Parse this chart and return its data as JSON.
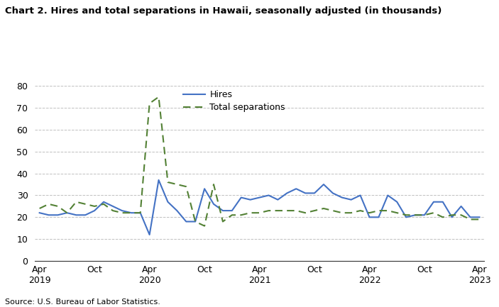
{
  "title": "Chart 2. Hires and total separations in Hawaii, seasonally adjusted (in thousands)",
  "source": "Source: U.S. Bureau of Labor Statistics.",
  "hires_label": "Hires",
  "sep_label": "Total separations",
  "hires_color": "#4472C4",
  "sep_color": "#538135",
  "ylim": [
    0,
    80
  ],
  "yticks": [
    0,
    10,
    20,
    30,
    40,
    50,
    60,
    70,
    80
  ],
  "x_tick_positions": [
    0,
    6,
    12,
    18,
    24,
    30,
    36,
    42,
    48
  ],
  "x_tick_labels_top": [
    "Apr",
    "Oct",
    "Apr",
    "Oct",
    "Apr",
    "Oct",
    "Apr",
    "Oct",
    "Apr"
  ],
  "x_tick_labels_bot": [
    "2019",
    "",
    "2020",
    "",
    "2021",
    "",
    "2022",
    "",
    "2023"
  ],
  "hires": [
    22,
    21,
    21,
    22,
    21,
    21,
    23,
    27,
    25,
    23,
    22,
    22,
    12,
    37,
    27,
    23,
    18,
    18,
    33,
    26,
    23,
    23,
    29,
    28,
    29,
    30,
    28,
    31,
    33,
    31,
    31,
    35,
    31,
    29,
    28,
    30,
    20,
    20,
    30,
    27,
    20,
    21,
    21,
    27,
    27,
    20,
    25,
    20,
    20
  ],
  "separations": [
    24,
    26,
    25,
    22,
    27,
    26,
    25,
    26,
    23,
    22,
    22,
    22,
    72,
    75,
    36,
    35,
    34,
    18,
    16,
    35,
    18,
    21,
    21,
    22,
    22,
    23,
    23,
    23,
    23,
    22,
    23,
    24,
    23,
    22,
    22,
    23,
    22,
    23,
    23,
    22,
    21,
    21,
    21,
    22,
    20,
    21,
    21,
    19,
    19
  ]
}
